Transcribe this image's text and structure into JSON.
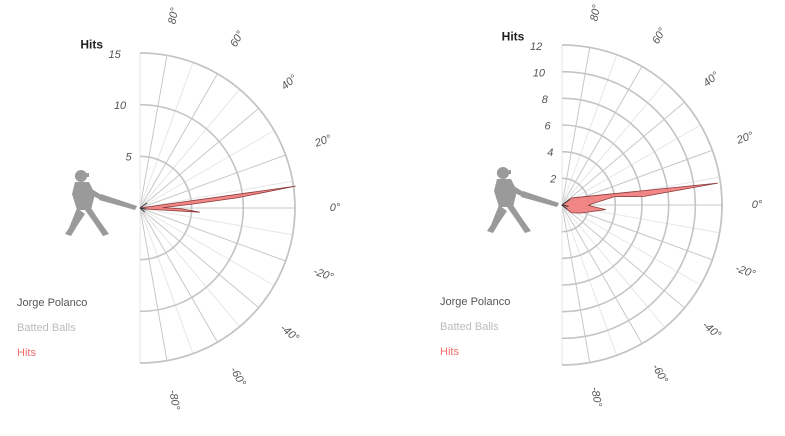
{
  "chart_data": [
    {
      "type": "radial-bar",
      "ylabel": "Hits",
      "angle_ticks": [
        "80°",
        "60°",
        "40°",
        "20°",
        "0°",
        "-20°",
        "-40°",
        "-60°",
        "-80°"
      ],
      "radial_ticks": [
        5,
        10,
        15
      ],
      "rmax": 15,
      "angle_range": [
        -90,
        90
      ],
      "grid": true,
      "legend": [
        "Jorge Polanco",
        "Batted Balls",
        "Hits"
      ],
      "legend_position": "bottom-left",
      "series": [
        {
          "name": "Hits",
          "color": "#f08080",
          "points": [
            {
              "angle": 8,
              "value": 15.2
            },
            {
              "angle": 6,
              "value": 9.5
            },
            {
              "angle": 4,
              "value": 4.8
            },
            {
              "angle": 1,
              "value": 2.2
            },
            {
              "angle": -1,
              "value": 4.0
            },
            {
              "angle": -4,
              "value": 5.8
            },
            {
              "angle": -6,
              "value": 1.5
            },
            {
              "angle": -12,
              "value": 0.4
            }
          ]
        }
      ]
    },
    {
      "type": "radial-bar",
      "ylabel": "Hits",
      "angle_ticks": [
        "80°",
        "60°",
        "40°",
        "20°",
        "0°",
        "-20°",
        "-40°",
        "-60°",
        "-80°"
      ],
      "radial_ticks": [
        2,
        4,
        6,
        8,
        10,
        12
      ],
      "rmax": 12,
      "angle_range": [
        -90,
        90
      ],
      "grid": true,
      "legend": [
        "Jorge Polanco",
        "Batted Balls",
        "Hits"
      ],
      "legend_position": "bottom-left",
      "series": [
        {
          "name": "Hits",
          "color": "#f08080",
          "points": [
            {
              "angle": 36,
              "value": 0.9
            },
            {
              "angle": 8,
              "value": 11.8
            },
            {
              "angle": 6,
              "value": 6.2
            },
            {
              "angle": 9,
              "value": 4.0
            },
            {
              "angle": 2,
              "value": 2.2
            },
            {
              "angle": -1,
              "value": 2.0
            },
            {
              "angle": -6,
              "value": 3.3
            },
            {
              "angle": -24,
              "value": 1.5
            },
            {
              "angle": -40,
              "value": 0.9
            }
          ]
        }
      ]
    }
  ],
  "legend_colors": {
    "Jorge Polanco": "#555555",
    "Batted Balls": "#bbbbbb",
    "Hits": "#f26d6d"
  },
  "batter_icon": "batter-silhouette-icon"
}
